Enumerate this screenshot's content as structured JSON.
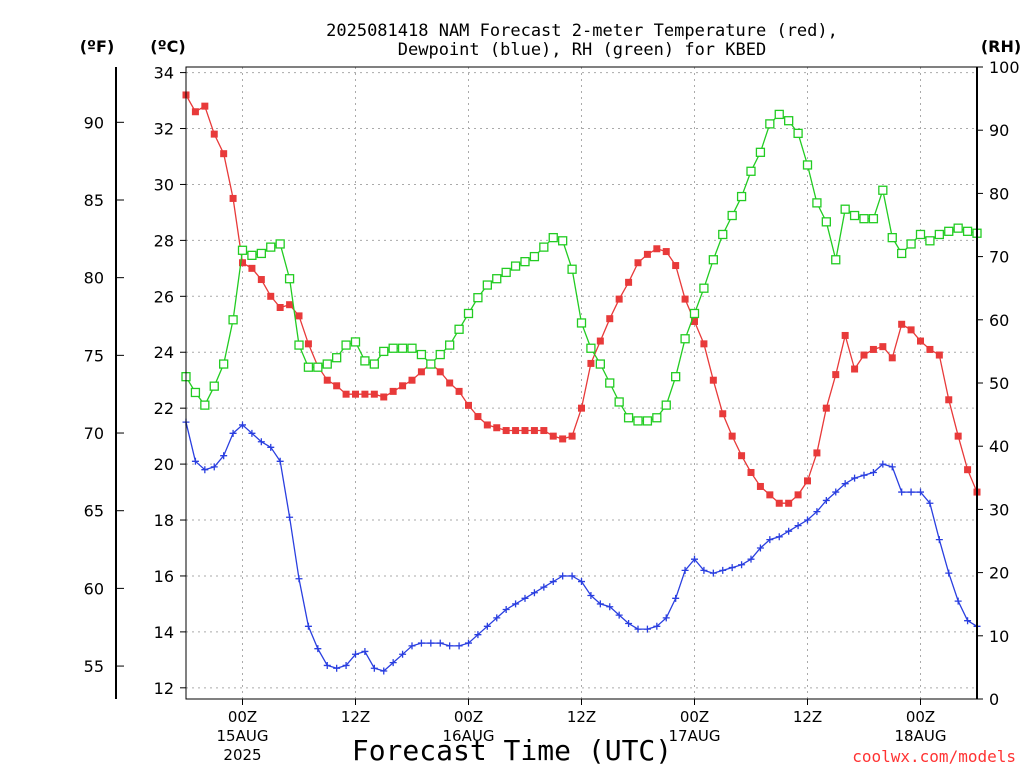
{
  "chart_data": {
    "type": "line",
    "title_line1": "2025081418 NAM Forecast 2-meter Temperature (red),",
    "title_line2": "Dewpoint (blue), RH (green) for KBED",
    "xlabel": "Forecast Time (UTC)",
    "watermark": "coolwx.com/models",
    "unit_labels": {
      "fahrenheit": "(ºF)",
      "celsius": "(ºC)",
      "rh": "(RH)"
    },
    "x_range_hours": [
      0,
      84
    ],
    "y_left_celsius_range": [
      11.6,
      34.2
    ],
    "y_right_rh_range": [
      0,
      100
    ],
    "y_celsius_ticks": [
      "34",
      "32",
      "30",
      "28",
      "26",
      "24",
      "22",
      "20",
      "18",
      "16",
      "14",
      "12"
    ],
    "y_fahrenheit_ticks": [
      "90",
      "85",
      "80",
      "75",
      "70",
      "65",
      "60",
      "55"
    ],
    "y_rh_ticks": [
      "100",
      "90",
      "80",
      "70",
      "60",
      "50",
      "40",
      "30",
      "20",
      "10",
      "0"
    ],
    "x_ticks": [
      {
        "hour": 6,
        "label": "00Z",
        "sub1": "15AUG",
        "sub2": "2025"
      },
      {
        "hour": 18,
        "label": "12Z",
        "sub1": "",
        "sub2": ""
      },
      {
        "hour": 30,
        "label": "00Z",
        "sub1": "16AUG",
        "sub2": ""
      },
      {
        "hour": 42,
        "label": "12Z",
        "sub1": "",
        "sub2": ""
      },
      {
        "hour": 54,
        "label": "00Z",
        "sub1": "17AUG",
        "sub2": ""
      },
      {
        "hour": 66,
        "label": "12Z",
        "sub1": "",
        "sub2": ""
      },
      {
        "hour": 78,
        "label": "00Z",
        "sub1": "18AUG",
        "sub2": ""
      }
    ],
    "grid": true,
    "colors": {
      "temperature": "#e83a3a",
      "dewpoint": "#2a3fe0",
      "rh": "#22cc22",
      "grid": "#aaaaaa"
    },
    "series": [
      {
        "key": "temperature",
        "unit": "C",
        "marker": "filled-square",
        "hours": [
          0,
          1,
          2,
          3,
          4,
          5,
          6,
          7,
          8,
          9,
          10,
          11,
          12,
          13,
          14,
          15,
          16,
          17,
          18,
          19,
          20,
          21,
          22,
          23,
          24,
          25,
          26,
          27,
          28,
          29,
          30,
          31,
          32,
          33,
          34,
          35,
          36,
          37,
          38,
          39,
          40,
          41,
          42,
          43,
          44,
          45,
          46,
          47,
          48,
          49,
          50,
          51,
          52,
          53,
          54,
          55,
          56,
          57,
          58,
          59,
          60,
          61,
          62,
          63,
          64,
          65,
          66,
          67,
          68,
          69,
          70,
          71,
          72,
          73,
          74,
          75,
          76,
          77,
          78,
          79,
          80,
          81,
          82,
          83,
          84
        ],
        "values": [
          33.2,
          32.6,
          32.8,
          31.8,
          31.1,
          29.5,
          27.2,
          27.0,
          26.6,
          26.0,
          25.6,
          25.7,
          25.3,
          24.3,
          23.5,
          23.0,
          22.8,
          22.5,
          22.5,
          22.5,
          22.5,
          22.4,
          22.6,
          22.8,
          23.0,
          23.3,
          23.6,
          23.3,
          22.9,
          22.6,
          22.1,
          21.7,
          21.4,
          21.3,
          21.2,
          21.2,
          21.2,
          21.2,
          21.2,
          21.0,
          20.9,
          21.0,
          22.0,
          23.6,
          24.4,
          25.2,
          25.9,
          26.5,
          27.2,
          27.5,
          27.7,
          27.6,
          27.1,
          25.9,
          25.1,
          24.3,
          23.0,
          21.8,
          21.0,
          20.3,
          19.7,
          19.2,
          18.9,
          18.6,
          18.6,
          18.9,
          19.4,
          20.4,
          22.0,
          23.2,
          24.6,
          23.4,
          23.9,
          24.1,
          24.2,
          23.8,
          25.0,
          24.8,
          24.4,
          24.1,
          23.9,
          22.3,
          21.0,
          19.8,
          19.0
        ]
      },
      {
        "key": "dewpoint",
        "unit": "C",
        "marker": "plus",
        "hours": [
          0,
          1,
          2,
          3,
          4,
          5,
          6,
          7,
          8,
          9,
          10,
          11,
          12,
          13,
          14,
          15,
          16,
          17,
          18,
          19,
          20,
          21,
          22,
          23,
          24,
          25,
          26,
          27,
          28,
          29,
          30,
          31,
          32,
          33,
          34,
          35,
          36,
          37,
          38,
          39,
          40,
          41,
          42,
          43,
          44,
          45,
          46,
          47,
          48,
          49,
          50,
          51,
          52,
          53,
          54,
          55,
          56,
          57,
          58,
          59,
          60,
          61,
          62,
          63,
          64,
          65,
          66,
          67,
          68,
          69,
          70,
          71,
          72,
          73,
          74,
          75,
          76,
          77,
          78,
          79,
          80,
          81,
          82,
          83,
          84
        ],
        "values": [
          21.5,
          20.1,
          19.8,
          19.9,
          20.3,
          21.1,
          21.4,
          21.1,
          20.8,
          20.6,
          20.1,
          18.1,
          15.9,
          14.2,
          13.4,
          12.8,
          12.7,
          12.8,
          13.2,
          13.3,
          12.7,
          12.6,
          12.9,
          13.2,
          13.5,
          13.6,
          13.6,
          13.6,
          13.5,
          13.5,
          13.6,
          13.9,
          14.2,
          14.5,
          14.8,
          15.0,
          15.2,
          15.4,
          15.6,
          15.8,
          16.0,
          16.0,
          15.8,
          15.3,
          15.0,
          14.9,
          14.6,
          14.3,
          14.1,
          14.1,
          14.2,
          14.5,
          15.2,
          16.2,
          16.6,
          16.2,
          16.1,
          16.2,
          16.3,
          16.4,
          16.6,
          17.0,
          17.3,
          17.4,
          17.6,
          17.8,
          18.0,
          18.3,
          18.7,
          19.0,
          19.3,
          19.5,
          19.6,
          19.7,
          20.0,
          19.9,
          19.0,
          19.0,
          19.0,
          18.6,
          17.3,
          16.1,
          15.1,
          14.4,
          14.2
        ]
      },
      {
        "key": "rh",
        "unit": "%",
        "marker": "open-square",
        "hours": [
          0,
          1,
          2,
          3,
          4,
          5,
          6,
          7,
          8,
          9,
          10,
          11,
          12,
          13,
          14,
          15,
          16,
          17,
          18,
          19,
          20,
          21,
          22,
          23,
          24,
          25,
          26,
          27,
          28,
          29,
          30,
          31,
          32,
          33,
          34,
          35,
          36,
          37,
          38,
          39,
          40,
          41,
          42,
          43,
          44,
          45,
          46,
          47,
          48,
          49,
          50,
          51,
          52,
          53,
          54,
          55,
          56,
          57,
          58,
          59,
          60,
          61,
          62,
          63,
          64,
          65,
          66,
          67,
          68,
          69,
          70,
          71,
          72,
          73,
          74,
          75,
          76,
          77,
          78,
          79,
          80,
          81,
          82,
          83,
          84
        ],
        "values": [
          51,
          48.5,
          46.5,
          49.5,
          53,
          60,
          71,
          70.2,
          70.5,
          71.5,
          72,
          66.5,
          56,
          52.5,
          52.5,
          53,
          54,
          56,
          56.5,
          53.5,
          53,
          55,
          55.5,
          55.5,
          55.5,
          54.5,
          53,
          54.5,
          56,
          58.5,
          61,
          63.5,
          65.5,
          66.5,
          67.5,
          68.5,
          69.2,
          70,
          71.5,
          73,
          72.5,
          68,
          59.5,
          55.5,
          53,
          50,
          47,
          44.5,
          44,
          44,
          44.5,
          46.5,
          51,
          57,
          61,
          65,
          69.5,
          73.5,
          76.5,
          79.5,
          83.5,
          86.5,
          91,
          92.5,
          91.5,
          89.5,
          84.5,
          78.5,
          75.5,
          69.5,
          77.5,
          76.5,
          76,
          76,
          80.5,
          73,
          70.5,
          72,
          73.5,
          72.5,
          73.5,
          74,
          74.5,
          74,
          73.7
        ]
      }
    ]
  }
}
